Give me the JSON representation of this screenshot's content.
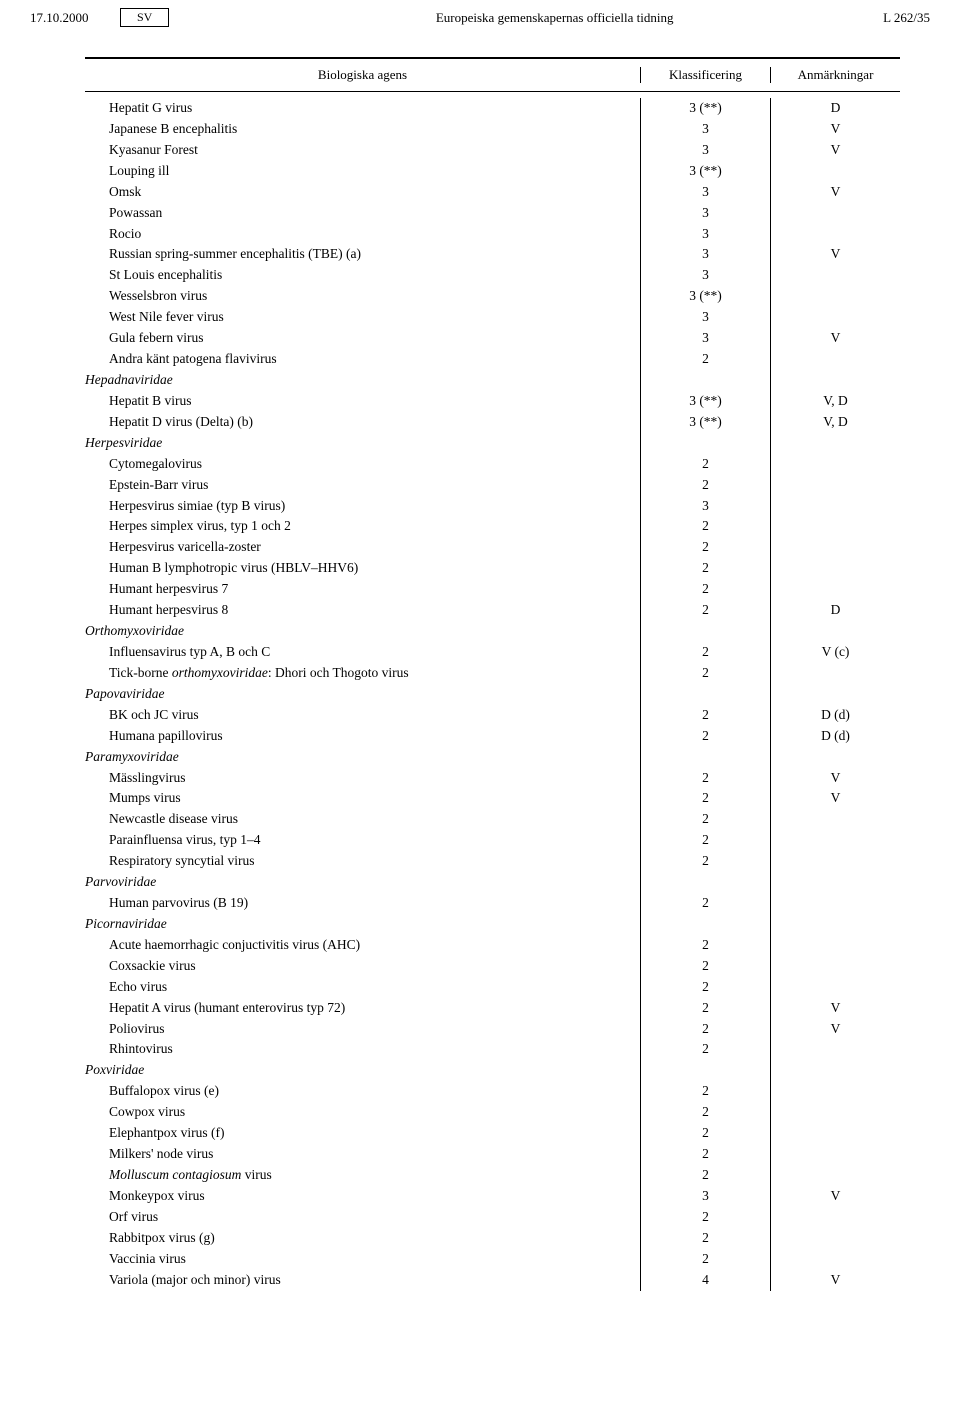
{
  "header": {
    "date": "17.10.2000",
    "lang": "SV",
    "publication": "Europeiska gemenskapernas officiella tidning",
    "page": "L 262/35"
  },
  "table": {
    "columns": {
      "agent": "Biologiska agens",
      "classification": "Klassificering",
      "notes": "Anmärkningar"
    },
    "rows": [
      {
        "agent": "Hepatit G virus",
        "class": "3 (**)",
        "note": "D"
      },
      {
        "agent": "Japanese B encephalitis",
        "class": "3",
        "note": "V"
      },
      {
        "agent": "Kyasanur Forest",
        "class": "3",
        "note": "V"
      },
      {
        "agent": "Louping ill",
        "class": "3 (**)",
        "note": ""
      },
      {
        "agent": "Omsk",
        "class": "3",
        "note": "V"
      },
      {
        "agent": "Powassan",
        "class": "3",
        "note": ""
      },
      {
        "agent": "Rocio",
        "class": "3",
        "note": ""
      },
      {
        "agent": "Russian spring-summer encephalitis (TBE) (a)",
        "class": "3",
        "note": "V"
      },
      {
        "agent": "St Louis encephalitis",
        "class": "3",
        "note": ""
      },
      {
        "agent": "Wesselsbron virus",
        "class": "3 (**)",
        "note": ""
      },
      {
        "agent": "West Nile fever virus",
        "class": "3",
        "note": ""
      },
      {
        "agent": "Gula febern virus",
        "class": "3",
        "note": "V"
      },
      {
        "agent": "Andra känt patogena flavivirus",
        "class": "2",
        "note": ""
      },
      {
        "agent": "Hepadnaviridae",
        "family": true
      },
      {
        "agent": "Hepatit B virus",
        "class": "3 (**)",
        "note": "V, D"
      },
      {
        "agent": "Hepatit D virus (Delta) (b)",
        "class": "3 (**)",
        "note": "V, D"
      },
      {
        "agent": "Herpesviridae",
        "family": true
      },
      {
        "agent": "Cytomegalovirus",
        "class": "2",
        "note": ""
      },
      {
        "agent": "Epstein-Barr virus",
        "class": "2",
        "note": ""
      },
      {
        "agent": "Herpesvirus simiae (typ B virus)",
        "class": "3",
        "note": ""
      },
      {
        "agent": "Herpes simplex virus, typ 1 och 2",
        "class": "2",
        "note": ""
      },
      {
        "agent": "Herpesvirus varicella-zoster",
        "class": "2",
        "note": ""
      },
      {
        "agent": "Human B lymphotropic virus (HBLV–HHV6)",
        "class": "2",
        "note": ""
      },
      {
        "agent": "Humant herpesvirus 7",
        "class": "2",
        "note": ""
      },
      {
        "agent": "Humant herpesvirus 8",
        "class": "2",
        "note": "D"
      },
      {
        "agent": "Orthomyxoviridae",
        "family": true
      },
      {
        "agent": "Influensavirus typ A, B och C",
        "class": "2",
        "note": "V (c)"
      },
      {
        "agent_html": "Tick-borne <span class=\"italic-inline\">orthomyxoviridae</span>: Dhori och Thogoto virus",
        "class": "2",
        "note": ""
      },
      {
        "agent": "Papovaviridae",
        "family": true
      },
      {
        "agent": "BK och JC virus",
        "class": "2",
        "note": "D (d)"
      },
      {
        "agent": "Humana papillovirus",
        "class": "2",
        "note": "D (d)"
      },
      {
        "agent": "Paramyxoviridae",
        "family": true
      },
      {
        "agent": "Mässlingvirus",
        "class": "2",
        "note": "V"
      },
      {
        "agent": "Mumps virus",
        "class": "2",
        "note": "V"
      },
      {
        "agent": "Newcastle disease virus",
        "class": "2",
        "note": ""
      },
      {
        "agent": "Parainfluensa virus, typ 1–4",
        "class": "2",
        "note": ""
      },
      {
        "agent": "Respiratory syncytial virus",
        "class": "2",
        "note": ""
      },
      {
        "agent": "Parvoviridae",
        "family": true
      },
      {
        "agent": "Human parvovirus (B 19)",
        "class": "2",
        "note": ""
      },
      {
        "agent": "Picornaviridae",
        "family": true
      },
      {
        "agent": "Acute haemorrhagic conjuctivitis virus (AHC)",
        "class": "2",
        "note": ""
      },
      {
        "agent": "Coxsackie virus",
        "class": "2",
        "note": ""
      },
      {
        "agent": "Echo virus",
        "class": "2",
        "note": ""
      },
      {
        "agent": "Hepatit A virus (humant enterovirus typ 72)",
        "class": "2",
        "note": "V"
      },
      {
        "agent": "Poliovirus",
        "class": "2",
        "note": "V"
      },
      {
        "agent": "Rhintovirus",
        "class": "2",
        "note": ""
      },
      {
        "agent": "Poxviridae",
        "family": true
      },
      {
        "agent": "Buffalopox virus (e)",
        "class": "2",
        "note": ""
      },
      {
        "agent": "Cowpox virus",
        "class": "2",
        "note": ""
      },
      {
        "agent": "Elephantpox virus (f)",
        "class": "2",
        "note": ""
      },
      {
        "agent": "Milkers' node virus",
        "class": "2",
        "note": ""
      },
      {
        "agent_html": "<span class=\"italic-inline\">Molluscum contagiosum</span> virus",
        "class": "2",
        "note": ""
      },
      {
        "agent": "Monkeypox virus",
        "class": "3",
        "note": "V"
      },
      {
        "agent": "Orf virus",
        "class": "2",
        "note": ""
      },
      {
        "agent": "Rabbitpox virus (g)",
        "class": "2",
        "note": ""
      },
      {
        "agent": "Vaccinia virus",
        "class": "2",
        "note": ""
      },
      {
        "agent": "Variola (major och minor) virus",
        "class": "4",
        "note": "V"
      }
    ]
  }
}
